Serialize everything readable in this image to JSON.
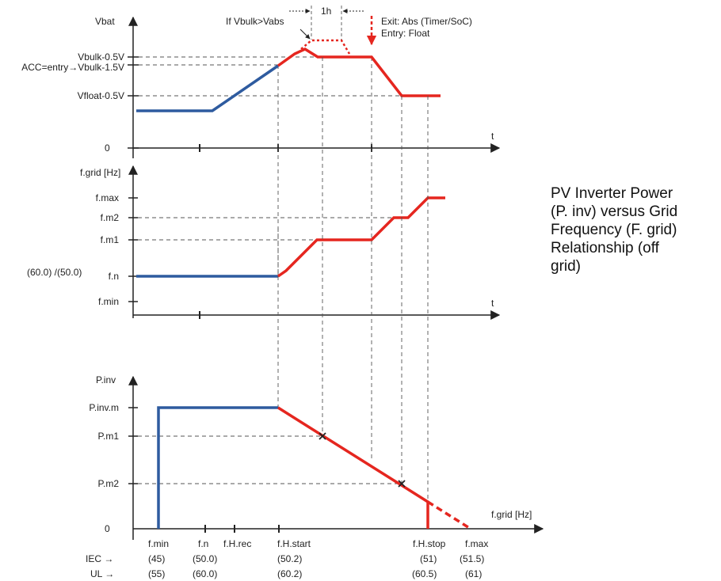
{
  "caption": "PV Inverter Power\n(P. inv) versus Grid\nFrequency (F. grid)\nRelationship (off\ngrid)",
  "colors": {
    "blue": "#2e5b9f",
    "red": "#e5261f",
    "axis": "#222222",
    "dashed": "#555555"
  },
  "top_panel": {
    "y_axis_label": "Vbat",
    "x_axis_label": "t",
    "ticks": {
      "bulk": "Vbulk-0.5V",
      "acc": "ACC=entry→Vbulk-1.5V",
      "float": "Vfloat-0.5V",
      "zero": "0"
    },
    "annotations": {
      "if_bulk": "If Vbulk>Vabs",
      "duration": "1h",
      "exit": "Exit: Abs (Timer/SoC)",
      "entry": "Entry: Float"
    }
  },
  "middle_panel": {
    "y_axis_label": "f.grid [Hz]",
    "x_axis_label": "t",
    "ticks": {
      "fmax": "f.max",
      "fm2": "f.m2",
      "fm1": "f.m1",
      "fn": "f.n",
      "fmin": "f.min"
    },
    "fn_values": "(60.0) /(50.0)"
  },
  "bottom_panel": {
    "y_axis_label": "P.inv",
    "x_axis_label": "f.grid [Hz]",
    "ticks": {
      "pinvm": "P.inv.m",
      "pm1": "P.m1",
      "pm2": "P.m2",
      "zero": "0"
    },
    "x_labels": {
      "fmin": "f.min",
      "fn": "f.n",
      "fhrec": "f.H.rec",
      "fhstart": "f.H.start",
      "fhstop": "f.H.stop",
      "fmax": "f.max"
    },
    "standards": {
      "iec": "IEC →",
      "ul": "UL →"
    },
    "iec_values": {
      "fmin": "(45)",
      "fn": "(50.0)",
      "fhstart": "(50.2)",
      "fhstop": "(51)",
      "fmax": "(51.5)"
    },
    "ul_values": {
      "fmin": "(55)",
      "fn": "(60.0)",
      "fhstart": "(60.2)",
      "fhstop": "(60.5)",
      "fmax": "(61)"
    }
  }
}
